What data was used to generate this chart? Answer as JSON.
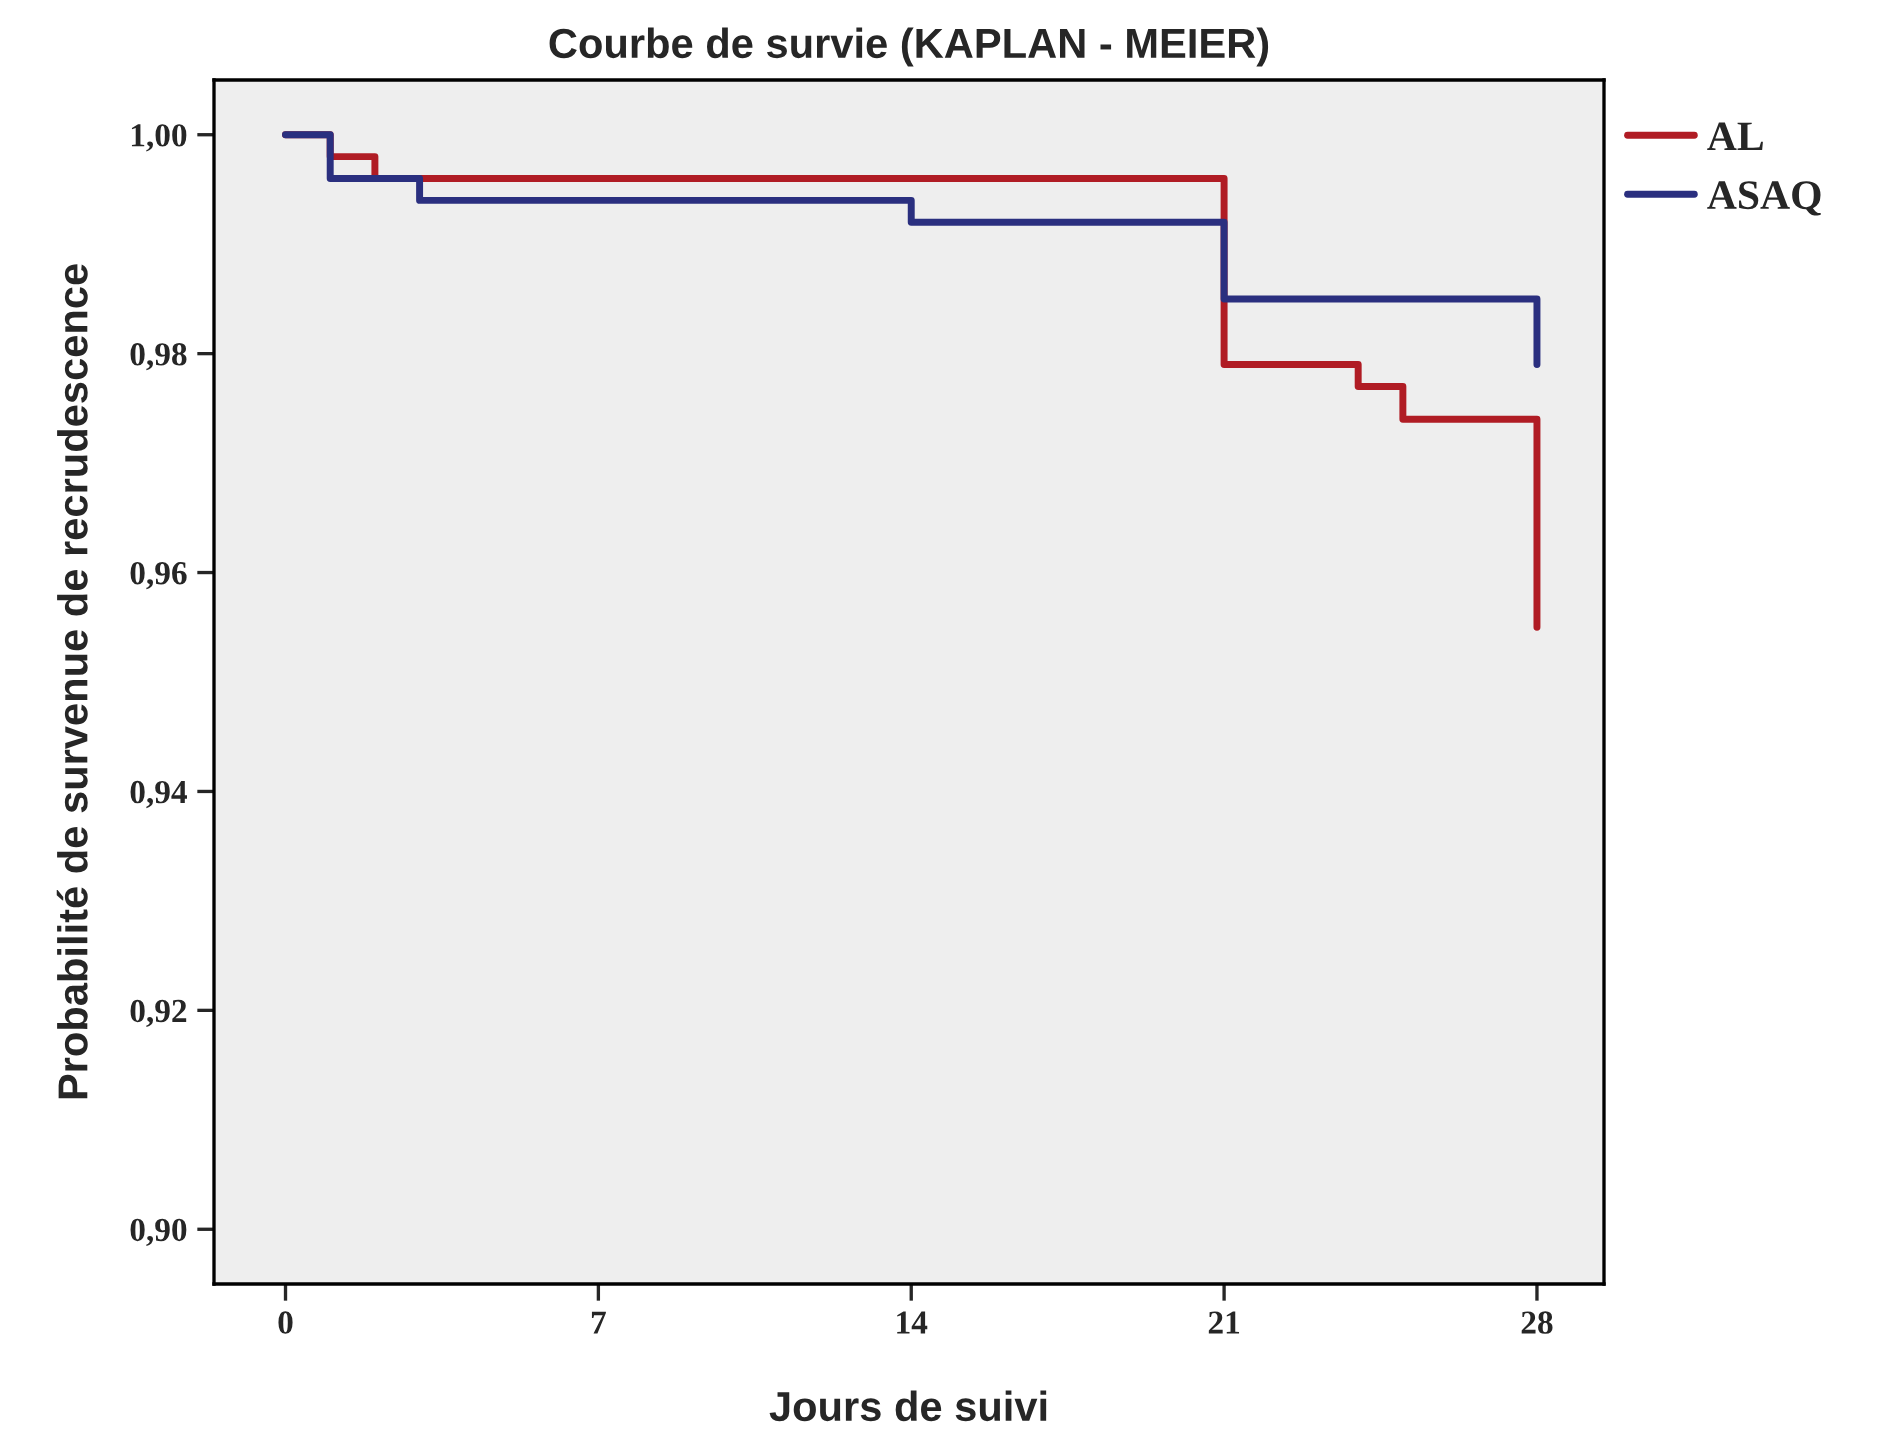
{
  "chart_data": {
    "type": "step",
    "title": "Courbe de survie (KAPLAN - MEIER)",
    "xlabel": "Jours de suivi",
    "ylabel": "Probabilité de survenue de recrudescence",
    "series": [
      {
        "name": "AL",
        "color": "#b01c24",
        "x": [
          0,
          1,
          2,
          21,
          24,
          25,
          28
        ],
        "values": [
          1.0,
          0.998,
          0.996,
          0.979,
          0.977,
          0.974,
          0.955
        ]
      },
      {
        "name": "ASAQ",
        "color": "#2a2f7f",
        "x": [
          0,
          1,
          3,
          14,
          21,
          28
        ],
        "values": [
          1.0,
          0.996,
          0.994,
          0.992,
          0.985,
          0.979
        ]
      }
    ],
    "xlim": [
      -1.6,
      29.5
    ],
    "xticks": [
      0,
      7,
      14,
      21,
      28
    ],
    "ylim": [
      0.895,
      1.005
    ],
    "yticks": [
      {
        "value": 0.9,
        "label": "0,90"
      },
      {
        "value": 0.92,
        "label": "0,92"
      },
      {
        "value": 0.94,
        "label": "0,94"
      },
      {
        "value": 0.96,
        "label": "0,96"
      },
      {
        "value": 0.98,
        "label": "0,98"
      },
      {
        "value": 1.0,
        "label": "1,00"
      }
    ],
    "grid": false,
    "legend": "top right",
    "line_style": "solid"
  }
}
